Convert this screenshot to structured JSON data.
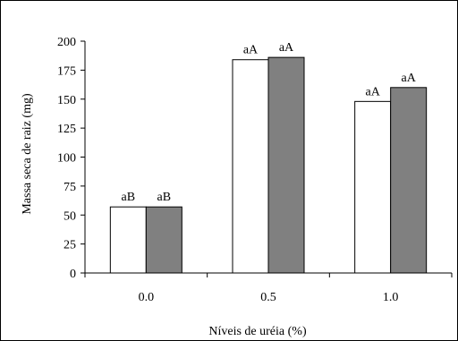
{
  "chart_data": {
    "type": "bar",
    "xlabel": "Níveis de uréia (%)",
    "ylabel": "Massa seca de raiz (mg)",
    "ylim": [
      0,
      200
    ],
    "yticks": [
      "0",
      "25",
      "50",
      "75",
      "100",
      "125",
      "150",
      "175",
      "200"
    ],
    "categories": [
      "0.0",
      "0.5",
      "1.0"
    ],
    "series": [
      {
        "values": [
          57,
          184,
          148
        ],
        "fill": "#ffffff",
        "labels": [
          "aB",
          "aA",
          "aA"
        ]
      },
      {
        "values": [
          57,
          186,
          160
        ],
        "fill": "#808080",
        "labels": [
          "aB",
          "aA",
          "aA"
        ]
      }
    ],
    "grid": false,
    "legend": "none"
  }
}
